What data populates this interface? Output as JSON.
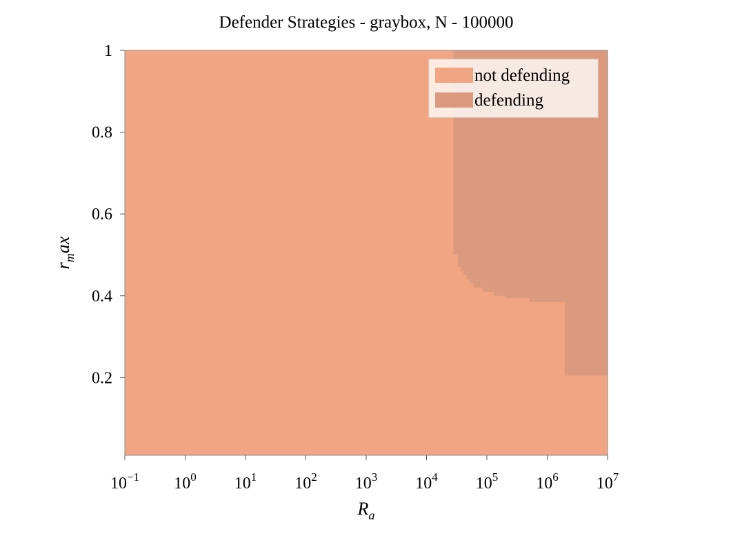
{
  "chart_data": {
    "type": "heatmap",
    "title": "Defender Strategies - graybox, N - 100000",
    "xlabel": {
      "base": "R",
      "sub": "a"
    },
    "ylabel": {
      "base": "r",
      "sub": "m",
      "rest": "ax"
    },
    "x_scale": "log",
    "xlim": [
      0.1,
      10000000
    ],
    "ylim": [
      0.01,
      1
    ],
    "x_ticks": [
      {
        "value": 0.1,
        "base": "10",
        "exp": "−1"
      },
      {
        "value": 1,
        "base": "10",
        "exp": "0"
      },
      {
        "value": 10,
        "base": "10",
        "exp": "1"
      },
      {
        "value": 100,
        "base": "10",
        "exp": "2"
      },
      {
        "value": 1000,
        "base": "10",
        "exp": "3"
      },
      {
        "value": 10000,
        "base": "10",
        "exp": "4"
      },
      {
        "value": 100000,
        "base": "10",
        "exp": "5"
      },
      {
        "value": 1000000,
        "base": "10",
        "exp": "6"
      },
      {
        "value": 10000000,
        "base": "10",
        "exp": "7"
      }
    ],
    "y_ticks": [
      {
        "value": 0.2,
        "label": "0.2"
      },
      {
        "value": 0.4,
        "label": "0.4"
      },
      {
        "value": 0.6,
        "label": "0.6"
      },
      {
        "value": 0.8,
        "label": "0.8"
      },
      {
        "value": 1.0,
        "label": "1"
      }
    ],
    "grid": false,
    "legend_position": "top-right",
    "series": [
      {
        "name": "not defending",
        "color": "#f1a582"
      },
      {
        "name": "defending",
        "color": "#db9a7e"
      }
    ],
    "background_class": "not defending",
    "defending_boundary": {
      "description": "lower edge of the 'defending' region: for R_a in [x0, x1), defending when r_max >= y",
      "segments": [
        {
          "x0": 28000,
          "x1": 33000,
          "y": 0.5
        },
        {
          "x0": 33000,
          "x1": 37000,
          "y": 0.47
        },
        {
          "x0": 37000,
          "x1": 41000,
          "y": 0.46
        },
        {
          "x0": 41000,
          "x1": 46000,
          "y": 0.45
        },
        {
          "x0": 46000,
          "x1": 52000,
          "y": 0.44
        },
        {
          "x0": 52000,
          "x1": 60000,
          "y": 0.43
        },
        {
          "x0": 60000,
          "x1": 85000,
          "y": 0.42
        },
        {
          "x0": 85000,
          "x1": 130000,
          "y": 0.41
        },
        {
          "x0": 130000,
          "x1": 200000,
          "y": 0.4
        },
        {
          "x0": 200000,
          "x1": 500000,
          "y": 0.395
        },
        {
          "x0": 500000,
          "x1": 1950000,
          "y": 0.385
        },
        {
          "x0": 1950000,
          "x1": 10000000,
          "y": 0.205
        }
      ]
    }
  }
}
